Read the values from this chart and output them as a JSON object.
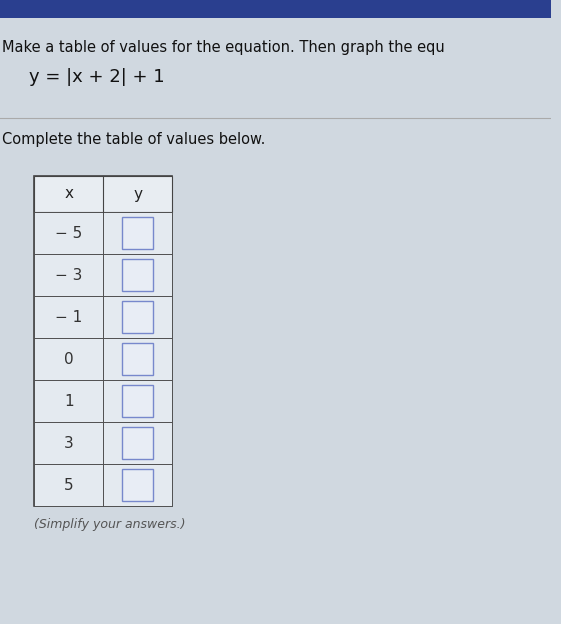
{
  "title_line1": "Make a table of values for the equation. Then graph the equ",
  "equation": "y = |x + 2| + 1",
  "subtitle": "Complete the table of values below.",
  "note": "(Simplify your answers.)",
  "x_values": [
    "− 5",
    "− 3",
    "− 1",
    "0",
    "1",
    "3",
    "5"
  ],
  "col_headers": [
    "x",
    "y"
  ],
  "background_top": "#2a3f8f",
  "background_main": "#d0d8e0",
  "table_bg": "#e8edf2",
  "cell_bg": "#e4eaf0",
  "header_text_color": "#222222",
  "cell_text_color": "#333333",
  "title_color": "#111111",
  "equation_color": "#111111",
  "subtitle_color": "#111111",
  "note_color": "#555555",
  "table_border_color": "#444444",
  "input_box_color": "#e8edf5",
  "input_box_border": "#7788cc",
  "separator_color": "#aaaaaa"
}
